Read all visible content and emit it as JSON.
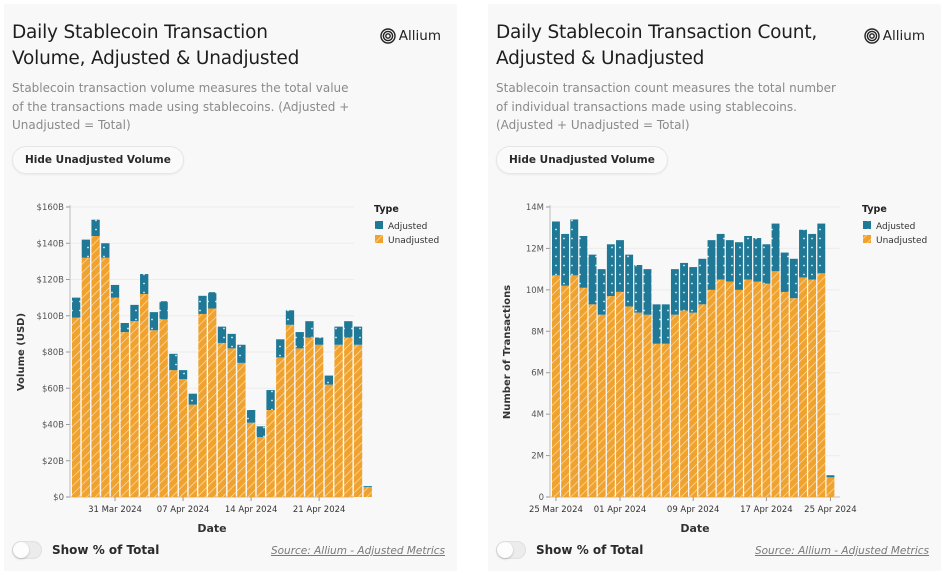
{
  "panels": [
    {
      "id": "volume",
      "title": "Daily Stablecoin Transaction Volume, Adjusted & Unadjusted",
      "brand": "Allium",
      "description": "Stablecoin transaction volume measures the total value of the transactions made using stablecoins. (Adjusted + Unadjusted = Total)",
      "toggle_button": "Hide Unadjusted Volume",
      "switch_label": "Show % of Total",
      "switch_on": false,
      "source": "Source: Allium - Adjusted Metrics"
    },
    {
      "id": "count",
      "title": "Daily Stablecoin Transaction Count, Adjusted & Unadjusted",
      "brand": "Allium",
      "description": "Stablecoin transaction count measures the total number of individual transactions made using stablecoins. (Adjusted + Unadjusted = Total)",
      "toggle_button": "Hide Unadjusted Volume",
      "switch_label": "Show % of Total",
      "switch_on": false,
      "source": "Source: Allium - Adjusted Metrics"
    }
  ],
  "colors": {
    "adjusted": "#1f7896",
    "unadjusted": "#f0a22e",
    "grid": "#ececec",
    "axis_text": "#555555"
  },
  "chart_data": [
    {
      "type": "bar",
      "stacked": true,
      "title": "Daily Stablecoin Transaction Volume, Adjusted & Unadjusted",
      "xlabel": "Date",
      "ylabel": "Volume (USD)",
      "ylim": [
        0,
        160
      ],
      "y_unit": "B USD",
      "yticks": [
        0,
        20,
        40,
        60,
        80,
        100,
        120,
        140,
        160
      ],
      "ytick_labels": [
        "$0",
        "$20B",
        "$40B",
        "$60B",
        "$80B",
        "$100B",
        "$120B",
        "$140B",
        "$160B"
      ],
      "xtick_labels": [
        {
          "label": "31 Mar 2024",
          "index": 4
        },
        {
          "label": "07 Apr 2024",
          "index": 11
        },
        {
          "label": "14 Apr 2024",
          "index": 18
        },
        {
          "label": "21 Apr 2024",
          "index": 25
        }
      ],
      "legend": {
        "title": "Type",
        "position": "top-right",
        "entries": [
          "Adjusted",
          "Unadjusted"
        ]
      },
      "grid": true,
      "categories": [
        "27 Mar",
        "28 Mar",
        "29 Mar",
        "30 Mar",
        "31 Mar",
        "01 Apr",
        "02 Apr",
        "03 Apr",
        "04 Apr",
        "05 Apr",
        "06 Apr",
        "07 Apr",
        "08 Apr",
        "09 Apr",
        "10 Apr",
        "11 Apr",
        "12 Apr",
        "13 Apr",
        "14 Apr",
        "15 Apr",
        "16 Apr",
        "17 Apr",
        "18 Apr",
        "19 Apr",
        "20 Apr",
        "21 Apr",
        "22 Apr",
        "23 Apr",
        "24 Apr",
        "25 Apr",
        "26 Apr"
      ],
      "series": [
        {
          "name": "Unadjusted",
          "values": [
            99,
            132,
            144,
            132,
            110,
            91,
            97,
            112,
            92,
            98,
            70,
            65,
            51,
            101,
            104,
            85,
            82,
            74,
            41,
            33,
            48,
            77,
            95,
            82,
            88,
            84,
            62,
            84,
            88,
            84,
            5.5
          ]
        },
        {
          "name": "Adjusted",
          "values": [
            11,
            10,
            9,
            8,
            7,
            5,
            9,
            11,
            10,
            10,
            9,
            5,
            6,
            10,
            9,
            9,
            8,
            10,
            7,
            6,
            11,
            10,
            8,
            9,
            9,
            4,
            5,
            10,
            9,
            10,
            0.5
          ]
        }
      ]
    },
    {
      "type": "bar",
      "stacked": true,
      "title": "Daily Stablecoin Transaction Count, Adjusted & Unadjusted",
      "xlabel": "Date",
      "ylabel": "Number of Transactions",
      "ylim": [
        0,
        14
      ],
      "y_unit": "M",
      "yticks": [
        0,
        2,
        4,
        6,
        8,
        10,
        12,
        14
      ],
      "ytick_labels": [
        "0",
        "2M",
        "4M",
        "6M",
        "8M",
        "10M",
        "12M",
        "14M"
      ],
      "xtick_labels": [
        {
          "label": "25 Mar 2024",
          "index": 0
        },
        {
          "label": "01 Apr 2024",
          "index": 7
        },
        {
          "label": "09 Apr 2024",
          "index": 15
        },
        {
          "label": "17 Apr 2024",
          "index": 23
        },
        {
          "label": "25 Apr 2024",
          "index": 30
        }
      ],
      "legend": {
        "title": "Type",
        "position": "top-right",
        "entries": [
          "Adjusted",
          "Unadjusted"
        ]
      },
      "grid": true,
      "categories": [
        "25 Mar",
        "26 Mar",
        "27 Mar",
        "28 Mar",
        "29 Mar",
        "30 Mar",
        "31 Mar",
        "01 Apr",
        "02 Apr",
        "03 Apr",
        "04 Apr",
        "05 Apr",
        "06 Apr",
        "07 Apr",
        "08 Apr",
        "09 Apr",
        "10 Apr",
        "11 Apr",
        "12 Apr",
        "13 Apr",
        "14 Apr",
        "15 Apr",
        "16 Apr",
        "17 Apr",
        "18 Apr",
        "19 Apr",
        "20 Apr",
        "21 Apr",
        "22 Apr",
        "23 Apr",
        "24 Apr",
        "25 Apr"
      ],
      "series": [
        {
          "name": "Unadjusted",
          "values": [
            10.7,
            10.2,
            10.7,
            10.1,
            9.3,
            8.8,
            9.7,
            9.9,
            9.2,
            8.9,
            8.8,
            7.4,
            7.4,
            8.8,
            9.0,
            8.9,
            9.3,
            10.0,
            10.5,
            10.4,
            10.0,
            10.5,
            10.4,
            10.3,
            10.9,
            9.9,
            9.6,
            10.6,
            10.5,
            10.8,
            0.95,
            null
          ]
        },
        {
          "name": "Adjusted",
          "values": [
            2.6,
            2.5,
            2.7,
            2.5,
            2.4,
            2.2,
            2.5,
            2.5,
            2.5,
            2.3,
            2.2,
            1.9,
            1.9,
            2.2,
            2.3,
            2.2,
            2.2,
            2.4,
            2.2,
            2.0,
            2.3,
            2.1,
            2.1,
            1.9,
            2.3,
            1.9,
            1.9,
            2.3,
            2.2,
            2.4,
            0.1,
            null
          ]
        }
      ]
    }
  ]
}
